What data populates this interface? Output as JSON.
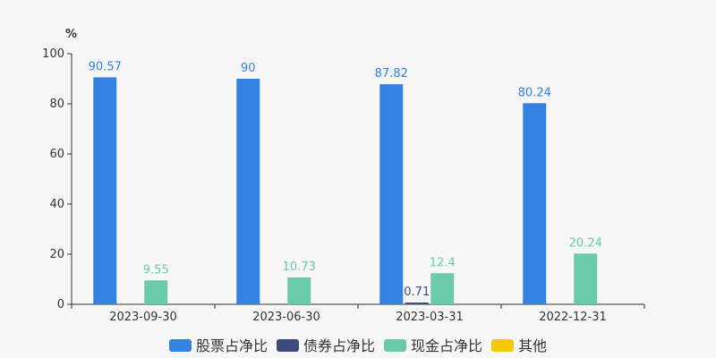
{
  "chart_data": {
    "type": "bar",
    "unit": "%",
    "ylim": [
      0,
      100
    ],
    "yticks": [
      0,
      20,
      40,
      60,
      80,
      100
    ],
    "categories": [
      "2023-09-30",
      "2023-06-30",
      "2023-03-31",
      "2022-12-31"
    ],
    "series": [
      {
        "name": "股票占净比",
        "color": "#3381e3",
        "values": [
          90.57,
          90,
          87.82,
          80.24
        ],
        "labels": [
          "90.57",
          "90",
          "87.82",
          "80.24"
        ]
      },
      {
        "name": "债券占净比",
        "color": "#3d4a7c",
        "values": [
          null,
          null,
          0.71,
          null
        ],
        "labels": [
          null,
          null,
          "0.71",
          null
        ]
      },
      {
        "name": "现金占净比",
        "color": "#6acaa9",
        "values": [
          9.55,
          10.73,
          12.4,
          20.24
        ],
        "labels": [
          "9.55",
          "10.73",
          "12.4",
          "20.24"
        ]
      },
      {
        "name": "其他",
        "color": "#f7c700",
        "values": [
          null,
          null,
          null,
          null
        ],
        "labels": [
          null,
          null,
          null,
          null
        ]
      }
    ],
    "grid": false,
    "legend_position": "bottom"
  }
}
